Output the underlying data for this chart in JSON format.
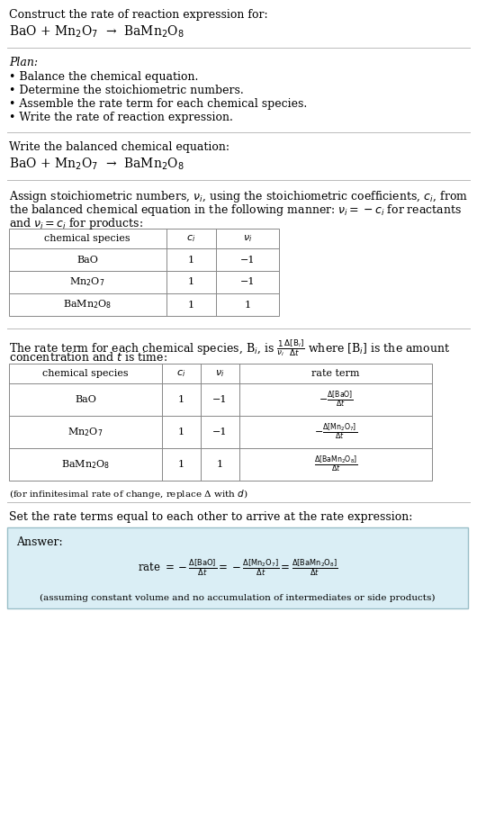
{
  "bg_color": "#ffffff",
  "text_color": "#000000",
  "section1_title": "Construct the rate of reaction expression for:",
  "section1_eq": "BaO + Mn$_2$O$_7$  →  BaMn$_2$O$_8$",
  "plan_title": "Plan:",
  "plan_items": [
    "• Balance the chemical equation.",
    "• Determine the stoichiometric numbers.",
    "• Assemble the rate term for each chemical species.",
    "• Write the rate of reaction expression."
  ],
  "balanced_title": "Write the balanced chemical equation:",
  "balanced_eq": "BaO + Mn$_2$O$_7$  →  BaMn$_2$O$_8$",
  "stoich_intro1": "Assign stoichiometric numbers, $\\nu_i$, using the stoichiometric coefficients, $c_i$, from",
  "stoich_intro2": "the balanced chemical equation in the following manner: $\\nu_i = -c_i$ for reactants",
  "stoich_intro3": "and $\\nu_i = c_i$ for products:",
  "table1_headers": [
    "chemical species",
    "$c_i$",
    "$\\nu_i$"
  ],
  "table1_rows": [
    [
      "BaO",
      "1",
      "−1"
    ],
    [
      "Mn$_2$O$_7$",
      "1",
      "−1"
    ],
    [
      "BaMn$_2$O$_8$",
      "1",
      "1"
    ]
  ],
  "rate_intro1": "The rate term for each chemical species, B$_i$, is $\\frac{1}{\\nu_i}\\frac{\\Delta[\\mathrm{B}_i]}{\\Delta t}$ where [B$_i$] is the amount",
  "rate_intro2": "concentration and $t$ is time:",
  "table2_headers": [
    "chemical species",
    "$c_i$",
    "$\\nu_i$",
    "rate term"
  ],
  "table2_rows": [
    [
      "BaO",
      "1",
      "−1",
      "$-\\frac{\\Delta[\\mathrm{BaO}]}{\\Delta t}$"
    ],
    [
      "Mn$_2$O$_7$",
      "1",
      "−1",
      "$-\\frac{\\Delta[\\mathrm{Mn_2O_7}]}{\\Delta t}$"
    ],
    [
      "BaMn$_2$O$_8$",
      "1",
      "1",
      "$\\frac{\\Delta[\\mathrm{BaMn_2O_8}]}{\\Delta t}$"
    ]
  ],
  "infinitesimal_note": "(for infinitesimal rate of change, replace Δ with $d$)",
  "set_equal_text": "Set the rate terms equal to each other to arrive at the rate expression:",
  "answer_label": "Answer:",
  "answer_eq": "rate $= -\\frac{\\Delta[\\mathrm{BaO}]}{\\Delta t} = -\\frac{\\Delta[\\mathrm{Mn_2O_7}]}{\\Delta t} = \\frac{\\Delta[\\mathrm{BaMn_2O_8}]}{\\Delta t}$",
  "answer_note": "(assuming constant volume and no accumulation of intermediates or side products)",
  "answer_bg": "#daeef5",
  "answer_border": "#9abfc8",
  "line_color": "#bbbbbb"
}
